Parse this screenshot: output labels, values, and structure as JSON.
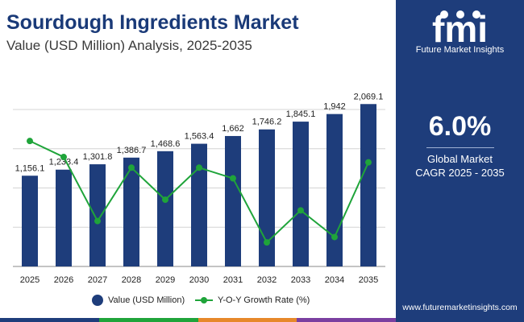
{
  "header": {
    "title": "Sourdough Ingredients Market",
    "subtitle": "Value (USD Million) Analysis, 2025-2035"
  },
  "panel": {
    "brand": "Future Market Insights",
    "logo_text": "fmi",
    "cagr_value": "6.0%",
    "cagr_line1": "Global Market",
    "cagr_line2": "CAGR 2025 - 2035",
    "website": "www.futuremarketinsights.com"
  },
  "colors": {
    "bar": "#1e3d7b",
    "line": "#1fa43a",
    "panel": "#1e3d7b",
    "bottom_bar": [
      "#1e3d7b",
      "#1fa43a",
      "#e7882a",
      "#7b3fa0"
    ]
  },
  "legend": {
    "bar_label": "Value (USD Million)",
    "line_label": "Y-O-Y Growth Rate (%)"
  },
  "chart_data": {
    "type": "bar",
    "categories": [
      "2025",
      "2026",
      "2027",
      "2028",
      "2029",
      "2030",
      "2031",
      "2032",
      "2033",
      "2034",
      "2035"
    ],
    "series": [
      {
        "name": "Value (USD Million)",
        "type": "bar",
        "values": [
          1156.1,
          1233.4,
          1301.8,
          1386.7,
          1468.6,
          1563.4,
          1662,
          1746.2,
          1845.1,
          1942,
          2069.1
        ],
        "labels": [
          "1,156.1",
          "1,233.4",
          "1,301.8",
          "1,386.7",
          "1,468.6",
          "1,563.4",
          "1,662",
          "1,746.2",
          "1,845.1",
          "1,942",
          "2,069.1"
        ]
      },
      {
        "name": "Y-O-Y Growth Rate (%)",
        "type": "line",
        "values": [
          7.0,
          6.7,
          5.5,
          6.5,
          5.9,
          6.5,
          6.3,
          5.1,
          5.7,
          5.2,
          6.6
        ]
      }
    ],
    "ylim": [
      0,
      2400
    ],
    "y2lim": [
      4.8,
      7.5
    ],
    "grid": true,
    "legend_position": "bottom"
  }
}
